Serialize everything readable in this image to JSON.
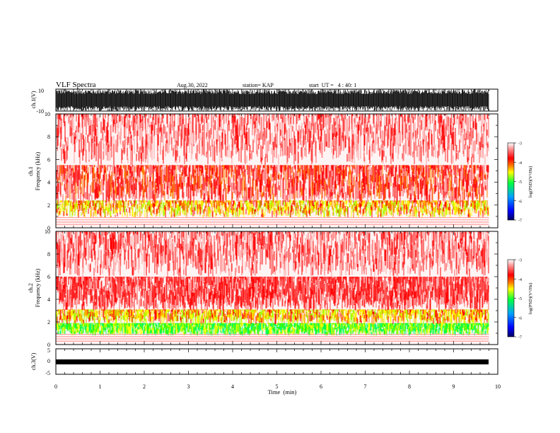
{
  "header": {
    "title": "VLF Spectra",
    "date": "Aug.30, 2022",
    "station": "station= KAP",
    "start_time": "start  UT =   4 : 40: 1"
  },
  "chart_data": [
    {
      "type": "line",
      "panel": "ch1-waveform",
      "ylabel": "ch.1(V)",
      "ylim": [
        -10,
        10
      ],
      "yticks": [
        "10",
        "-10"
      ],
      "xlim": [
        0,
        10
      ],
      "description_style": "dense saturated waveform, amplitude near full scale throughout"
    },
    {
      "type": "heatmap",
      "panel": "ch1-spectrogram",
      "ylabel_channel": "ch.1",
      "ylabel": "Frequency (kHz)",
      "ylim": [
        0,
        10
      ],
      "yticks": [
        "0",
        "2",
        "4",
        "6",
        "8",
        "10"
      ],
      "xlim": [
        0,
        9.8
      ],
      "bands_kHz": {
        "green_yellow": [
          0.8,
          2.2
        ],
        "red": [
          2.2,
          5.5
        ],
        "sparse_red": [
          5.5,
          10
        ]
      },
      "colorbar": {
        "label": "log(PSD)(V²/Hz)",
        "range": [
          -7,
          -3
        ],
        "ticks": [
          "-3",
          "-4",
          "-5",
          "-6",
          "-7"
        ]
      }
    },
    {
      "type": "heatmap",
      "panel": "ch2-spectrogram",
      "ylabel_channel": "ch.2",
      "ylabel": "Frequency (kHz)",
      "ylim": [
        0,
        10
      ],
      "yticks": [
        "0",
        "2",
        "4",
        "6",
        "8",
        "10"
      ],
      "xlim": [
        0,
        9.8
      ],
      "bands_kHz": {
        "green": [
          0.8,
          1.8
        ],
        "yellow": [
          1.8,
          3.0
        ],
        "red": [
          3.0,
          6.0
        ],
        "sparse_red": [
          6.0,
          10
        ]
      },
      "colorbar": {
        "label": "log(PSD)(V²/Hz)",
        "range": [
          -7,
          -3
        ],
        "ticks": [
          "-3",
          "-4",
          "-5",
          "-6",
          "-7"
        ]
      }
    },
    {
      "type": "line",
      "panel": "ch3-waveform",
      "ylabel": "ch.3(V)",
      "ylim": [
        -5,
        5
      ],
      "yticks": [
        "5",
        "0",
        "-5"
      ],
      "xlim": [
        0,
        9.8
      ],
      "level_V": 0
    }
  ],
  "xaxis": {
    "label": "Time  (min)",
    "ticks": [
      "0",
      "1",
      "2",
      "3",
      "4",
      "5",
      "6",
      "7",
      "8",
      "9",
      "10"
    ],
    "range": [
      0,
      10
    ]
  },
  "colors": {
    "cmap": [
      "#000060",
      "#0000ff",
      "#00a0ff",
      "#00ff40",
      "#ffff00",
      "#ff8000",
      "#ff0000",
      "#ff8080",
      "#ffffff"
    ]
  }
}
